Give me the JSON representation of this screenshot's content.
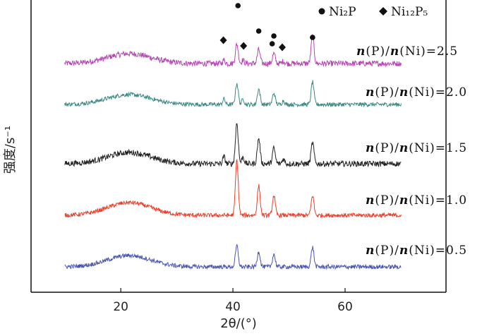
{
  "chart_data": {
    "type": "line",
    "title": "",
    "xlabel": "2θ/(°)",
    "ylabel": "强度/s⁻¹",
    "xlim": [
      4,
      78
    ],
    "xticks": [
      "20",
      "40",
      "60"
    ],
    "grid": false,
    "legend": {
      "placement": "top-right",
      "entries": [
        {
          "marker": "circle",
          "label": "Ni₂P"
        },
        {
          "marker": "diamond",
          "label": "Ni₁₂P₅"
        }
      ]
    },
    "series": [
      {
        "name": "n(P)/n(Ni)=2.5",
        "label_main": "n",
        "label_rest": "(P)/",
        "label_main2": "n",
        "label_tail": "(Ni)=2.5",
        "color": "#b646b6"
      },
      {
        "name": "n(P)/n(Ni)=2.0",
        "label_main": "n",
        "label_rest": "(P)/",
        "label_main2": "n",
        "label_tail": "(Ni)=2.0",
        "color": "#3d8a86"
      },
      {
        "name": "n(P)/n(Ni)=1.5",
        "label_main": "n",
        "label_rest": "(P)/",
        "label_main2": "n",
        "label_tail": "(Ni)=1.5",
        "color": "#222222"
      },
      {
        "name": "n(P)/n(Ni)=1.0",
        "label_main": "n",
        "label_rest": "(P)/",
        "label_main2": "n",
        "label_tail": "(Ni)=1.0",
        "color": "#e8402c"
      },
      {
        "name": "n(P)/n(Ni)=0.5",
        "label_main": "n",
        "label_rest": "(P)/",
        "label_main2": "n",
        "label_tail": "(Ni)=0.5",
        "color": "#4a55b0"
      }
    ],
    "peaks_2theta": {
      "Ni2P": [
        40.7,
        44.6,
        47.3,
        54.2
      ],
      "Ni12P5": [
        38.4,
        41.7,
        49.0
      ]
    },
    "annotations_2.5": {
      "Ni2P_markers": [
        40.9,
        44.6,
        47.3,
        47.0,
        54.2
      ],
      "Ni12P5_markers": [
        38.3,
        41.9,
        48.8
      ]
    }
  }
}
